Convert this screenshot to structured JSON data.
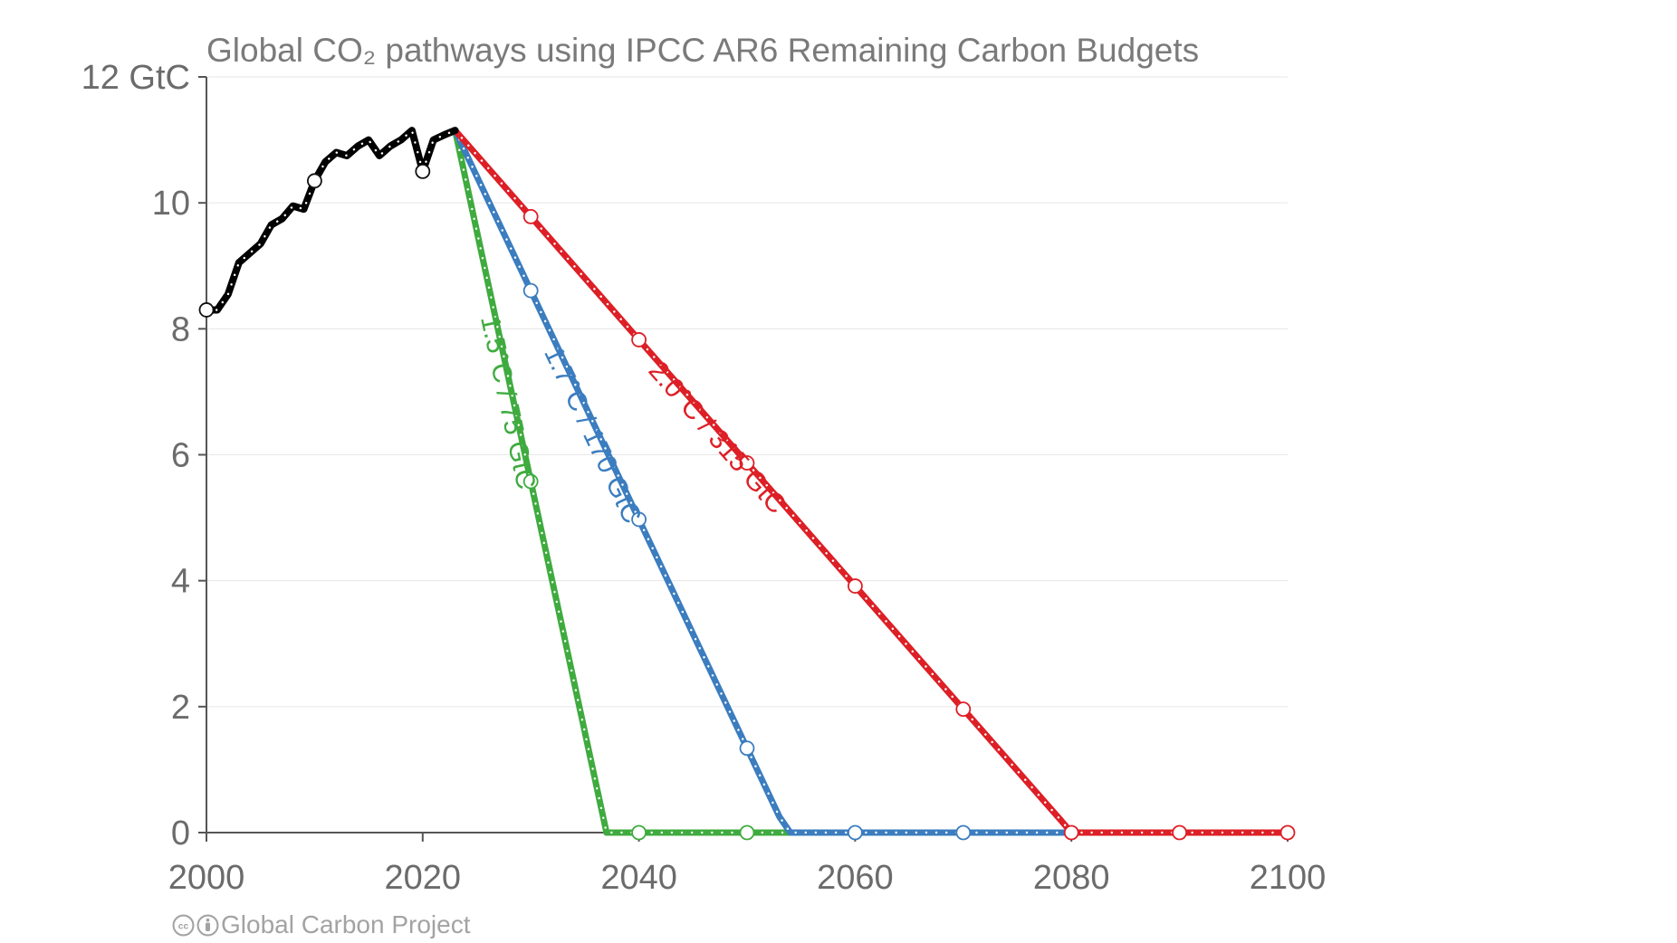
{
  "chart_data": {
    "type": "line",
    "title": "Global CO₂ pathways using IPCC AR6 Remaining Carbon Budgets",
    "xlabel": "",
    "ylabel": "",
    "xlim": [
      2000,
      2100
    ],
    "ylim": [
      0,
      12
    ],
    "x_ticks": [
      2000,
      2020,
      2040,
      2060,
      2080,
      2100
    ],
    "y_ticks": [
      0,
      2,
      4,
      6,
      8,
      10,
      12
    ],
    "y_tick_labels": [
      "0",
      "2",
      "4",
      "6",
      "8",
      "10",
      "12 GtC"
    ],
    "grid": "horizontal",
    "legend": "none",
    "series": [
      {
        "name": "",
        "color": "#000000",
        "x": [
          2000,
          2001,
          2002,
          2003,
          2004,
          2005,
          2006,
          2007,
          2008,
          2009,
          2010,
          2011,
          2012,
          2013,
          2014,
          2015,
          2016,
          2017,
          2018,
          2019,
          2020,
          2021,
          2022,
          2023
        ],
        "y": [
          8.3,
          8.3,
          8.55,
          9.05,
          9.2,
          9.35,
          9.65,
          9.75,
          9.95,
          9.9,
          10.35,
          10.65,
          10.8,
          10.75,
          10.9,
          11.0,
          10.75,
          10.9,
          11.0,
          11.15,
          10.5,
          11.0,
          11.08,
          11.15
        ],
        "marker_x": [
          2000,
          2010,
          2020
        ]
      },
      {
        "name": "1.5°C / 75 GtC",
        "color": "#3fab3f",
        "x": [
          2023,
          2036.5,
          2037,
          2100
        ],
        "y": [
          11.15,
          0.4,
          0,
          0
        ],
        "marker_x": [
          2030,
          2040,
          2050
        ]
      },
      {
        "name": "1.7°C / 170 GtC",
        "color": "#3b7dbf",
        "x": [
          2023,
          2053,
          2054,
          2100
        ],
        "y": [
          11.15,
          0.25,
          0,
          0
        ],
        "marker_x": [
          2030,
          2040,
          2050,
          2060,
          2070
        ]
      },
      {
        "name": "2.0°C / 315 GtC",
        "color": "#dd1f26",
        "x": [
          2023,
          2079,
          2080,
          2100
        ],
        "y": [
          11.15,
          0.2,
          0,
          0
        ],
        "marker_x": [
          2030,
          2040,
          2050,
          2060,
          2070,
          2080,
          2090,
          2100
        ]
      }
    ]
  },
  "credit": {
    "text": "Global Carbon Project"
  }
}
